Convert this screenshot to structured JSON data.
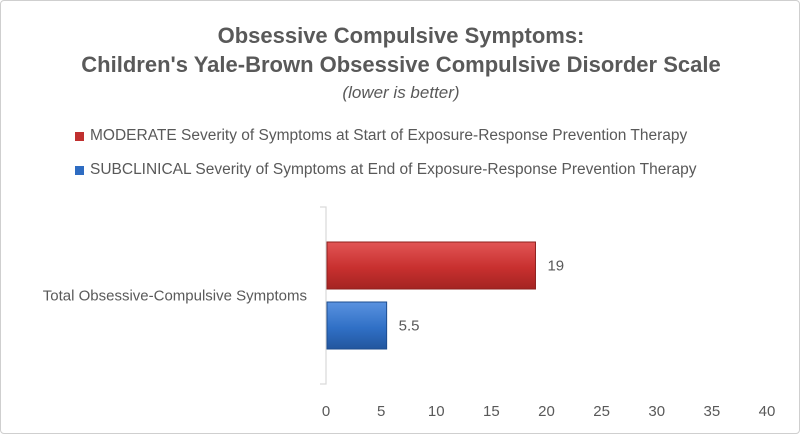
{
  "chart_data": {
    "type": "bar",
    "orientation": "horizontal",
    "title_lines": [
      "Obsessive Compulsive Symptoms:",
      "Children's Yale-Brown Obsessive Compulsive Disorder Scale"
    ],
    "subtitle": "(lower is better)",
    "categories": [
      "Total Obsessive-Compulsive Symptoms"
    ],
    "series": [
      {
        "name": "MODERATE Severity of Symptoms at Start of Exposure-Response Prevention Therapy",
        "values": [
          19
        ],
        "data_labels": [
          "19"
        ],
        "color": "#c0302f"
      },
      {
        "name": "SUBCLINICAL Severity of Symptoms at End of Exposure-Response Prevention Therapy",
        "values": [
          5.5
        ],
        "data_labels": [
          "5.5"
        ],
        "color": "#2e6cc2"
      }
    ],
    "xlim": [
      0,
      40
    ],
    "xticks": [
      0,
      5,
      10,
      15,
      20,
      25,
      30,
      35,
      40
    ],
    "xtick_labels": [
      "0",
      "5",
      "10",
      "15",
      "20",
      "25",
      "30",
      "35",
      "40"
    ],
    "xlabel": "",
    "ylabel": "",
    "legend_position": "top",
    "grid": false
  }
}
